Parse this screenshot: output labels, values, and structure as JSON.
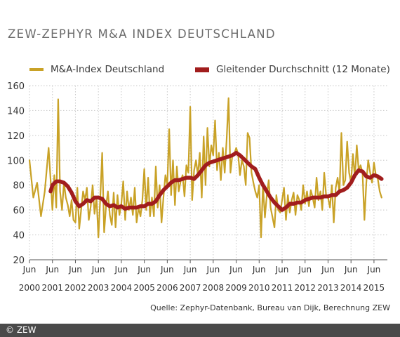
{
  "title": "ZEW-ZEPHYR M&A INDEX DEUTSCHLAND",
  "source": "Quelle: Zephyr-Datenbank, Bureau van Dijk, Berechnung ZEW",
  "footer": "© ZEW",
  "colors": {
    "index": "#c9a227",
    "average": "#a11d1d",
    "grid": "#c8c8c8",
    "axis": "#555555",
    "footer": "#4a4a4a"
  },
  "chart_data": {
    "type": "line",
    "ylim": [
      20,
      160
    ],
    "yticks": [
      20,
      40,
      60,
      80,
      100,
      120,
      140,
      160
    ],
    "xlim": [
      2000,
      2015.583
    ],
    "xticks": [
      {
        "month": "Jun",
        "year": "2000",
        "x": 2000.0
      },
      {
        "month": "Jun",
        "year": "2001",
        "x": 2001.0
      },
      {
        "month": "Jun",
        "year": "2002",
        "x": 2002.0
      },
      {
        "month": "Jun",
        "year": "2003",
        "x": 2003.0
      },
      {
        "month": "Jun",
        "year": "2004",
        "x": 2004.0
      },
      {
        "month": "Jun",
        "year": "2005",
        "x": 2005.0
      },
      {
        "month": "Jun",
        "year": "2006",
        "x": 2006.0
      },
      {
        "month": "Jun",
        "year": "2007",
        "x": 2007.0
      },
      {
        "month": "Jun",
        "year": "2008",
        "x": 2008.0
      },
      {
        "month": "Jun",
        "year": "2009",
        "x": 2009.0
      },
      {
        "month": "Jun",
        "year": "2010",
        "x": 2010.0
      },
      {
        "month": "Jun",
        "year": "2011",
        "x": 2011.0
      },
      {
        "month": "Jun",
        "year": "2012",
        "x": 2012.0
      },
      {
        "month": "Jun",
        "year": "2013",
        "x": 2013.0
      },
      {
        "month": "Jun",
        "year": "2014",
        "x": 2014.0
      },
      {
        "month": "Jun",
        "year": "2015",
        "x": 2015.0
      }
    ],
    "grid": true,
    "legend": "top",
    "series": [
      {
        "name": "M&A-Index Deutschland",
        "type": "line",
        "points": [
          [
            2000.0,
            100
          ],
          [
            2000.167,
            70
          ],
          [
            2000.333,
            82
          ],
          [
            2000.5,
            55
          ],
          [
            2000.667,
            75
          ],
          [
            2000.833,
            110
          ],
          [
            2001.0,
            60
          ],
          [
            2001.083,
            88
          ],
          [
            2001.167,
            62
          ],
          [
            2001.25,
            149
          ],
          [
            2001.333,
            75
          ],
          [
            2001.417,
            60
          ],
          [
            2001.5,
            82
          ],
          [
            2001.583,
            70
          ],
          [
            2001.667,
            64
          ],
          [
            2001.75,
            55
          ],
          [
            2001.833,
            68
          ],
          [
            2001.917,
            52
          ],
          [
            2002.0,
            50
          ],
          [
            2002.083,
            78
          ],
          [
            2002.167,
            45
          ],
          [
            2002.25,
            60
          ],
          [
            2002.333,
            75
          ],
          [
            2002.417,
            68
          ],
          [
            2002.5,
            78
          ],
          [
            2002.583,
            52
          ],
          [
            2002.667,
            63
          ],
          [
            2002.75,
            80
          ],
          [
            2002.833,
            57
          ],
          [
            2002.917,
            70
          ],
          [
            2003.0,
            38
          ],
          [
            2003.083,
            70
          ],
          [
            2003.167,
            106
          ],
          [
            2003.25,
            42
          ],
          [
            2003.333,
            63
          ],
          [
            2003.417,
            75
          ],
          [
            2003.5,
            56
          ],
          [
            2003.583,
            48
          ],
          [
            2003.667,
            74
          ],
          [
            2003.75,
            46
          ],
          [
            2003.833,
            72
          ],
          [
            2003.917,
            56
          ],
          [
            2004.0,
            65
          ],
          [
            2004.083,
            83
          ],
          [
            2004.167,
            52
          ],
          [
            2004.25,
            75
          ],
          [
            2004.333,
            60
          ],
          [
            2004.417,
            70
          ],
          [
            2004.5,
            56
          ],
          [
            2004.583,
            78
          ],
          [
            2004.667,
            50
          ],
          [
            2004.75,
            62
          ],
          [
            2004.833,
            55
          ],
          [
            2004.917,
            68
          ],
          [
            2005.0,
            93
          ],
          [
            2005.083,
            60
          ],
          [
            2005.167,
            86
          ],
          [
            2005.25,
            55
          ],
          [
            2005.333,
            70
          ],
          [
            2005.417,
            55
          ],
          [
            2005.5,
            95
          ],
          [
            2005.583,
            62
          ],
          [
            2005.667,
            80
          ],
          [
            2005.75,
            50
          ],
          [
            2005.833,
            70
          ],
          [
            2005.917,
            88
          ],
          [
            2006.0,
            80
          ],
          [
            2006.083,
            125
          ],
          [
            2006.167,
            72
          ],
          [
            2006.25,
            100
          ],
          [
            2006.333,
            64
          ],
          [
            2006.417,
            95
          ],
          [
            2006.5,
            75
          ],
          [
            2006.583,
            83
          ],
          [
            2006.667,
            88
          ],
          [
            2006.75,
            71
          ],
          [
            2006.833,
            96
          ],
          [
            2006.917,
            90
          ],
          [
            2007.0,
            143
          ],
          [
            2007.083,
            68
          ],
          [
            2007.167,
            92
          ],
          [
            2007.25,
            100
          ],
          [
            2007.333,
            88
          ],
          [
            2007.417,
            106
          ],
          [
            2007.5,
            70
          ],
          [
            2007.583,
            119
          ],
          [
            2007.667,
            80
          ],
          [
            2007.75,
            126
          ],
          [
            2007.833,
            95
          ],
          [
            2007.917,
            112
          ],
          [
            2008.0,
            104
          ],
          [
            2008.083,
            132
          ],
          [
            2008.167,
            92
          ],
          [
            2008.25,
            106
          ],
          [
            2008.333,
            84
          ],
          [
            2008.417,
            110
          ],
          [
            2008.5,
            90
          ],
          [
            2008.583,
            116
          ],
          [
            2008.667,
            150
          ],
          [
            2008.75,
            90
          ],
          [
            2008.833,
            104
          ],
          [
            2008.917,
            105
          ],
          [
            2009.0,
            110
          ],
          [
            2009.083,
            105
          ],
          [
            2009.167,
            88
          ],
          [
            2009.25,
            100
          ],
          [
            2009.333,
            95
          ],
          [
            2009.417,
            80
          ],
          [
            2009.5,
            122
          ],
          [
            2009.583,
            118
          ],
          [
            2009.667,
            90
          ],
          [
            2009.75,
            82
          ],
          [
            2009.833,
            75
          ],
          [
            2009.917,
            70
          ],
          [
            2010.0,
            80
          ],
          [
            2010.083,
            38
          ],
          [
            2010.167,
            80
          ],
          [
            2010.25,
            54
          ],
          [
            2010.333,
            72
          ],
          [
            2010.417,
            84
          ],
          [
            2010.5,
            62
          ],
          [
            2010.583,
            54
          ],
          [
            2010.667,
            46
          ],
          [
            2010.75,
            72
          ],
          [
            2010.833,
            60
          ],
          [
            2010.917,
            58
          ],
          [
            2011.0,
            68
          ],
          [
            2011.083,
            78
          ],
          [
            2011.167,
            52
          ],
          [
            2011.25,
            72
          ],
          [
            2011.333,
            58
          ],
          [
            2011.417,
            68
          ],
          [
            2011.5,
            74
          ],
          [
            2011.583,
            56
          ],
          [
            2011.667,
            72
          ],
          [
            2011.75,
            68
          ],
          [
            2011.833,
            60
          ],
          [
            2011.917,
            80
          ],
          [
            2012.0,
            65
          ],
          [
            2012.083,
            75
          ],
          [
            2012.167,
            63
          ],
          [
            2012.25,
            76
          ],
          [
            2012.333,
            70
          ],
          [
            2012.417,
            62
          ],
          [
            2012.5,
            86
          ],
          [
            2012.583,
            68
          ],
          [
            2012.667,
            75
          ],
          [
            2012.75,
            60
          ],
          [
            2012.833,
            90
          ],
          [
            2012.917,
            72
          ],
          [
            2013.0,
            70
          ],
          [
            2013.083,
            62
          ],
          [
            2013.167,
            80
          ],
          [
            2013.25,
            50
          ],
          [
            2013.333,
            78
          ],
          [
            2013.417,
            86
          ],
          [
            2013.5,
            74
          ],
          [
            2013.583,
            122
          ],
          [
            2013.667,
            80
          ],
          [
            2013.75,
            84
          ],
          [
            2013.833,
            115
          ],
          [
            2013.917,
            90
          ],
          [
            2014.0,
            82
          ],
          [
            2014.083,
            105
          ],
          [
            2014.167,
            86
          ],
          [
            2014.25,
            112
          ],
          [
            2014.333,
            92
          ],
          [
            2014.417,
            96
          ],
          [
            2014.5,
            90
          ],
          [
            2014.583,
            52
          ],
          [
            2014.667,
            82
          ],
          [
            2014.75,
            100
          ],
          [
            2014.833,
            90
          ],
          [
            2014.917,
            82
          ],
          [
            2015.0,
            98
          ],
          [
            2015.083,
            88
          ],
          [
            2015.167,
            85
          ],
          [
            2015.25,
            75
          ],
          [
            2015.333,
            70
          ]
        ]
      },
      {
        "name": "Gleitender Durchschnitt (12 Monate)",
        "type": "line",
        "points": [
          [
            2000.917,
            75
          ],
          [
            2001.0,
            80
          ],
          [
            2001.167,
            83
          ],
          [
            2001.333,
            83
          ],
          [
            2001.5,
            82
          ],
          [
            2001.667,
            79
          ],
          [
            2001.833,
            74
          ],
          [
            2002.0,
            67
          ],
          [
            2002.167,
            63
          ],
          [
            2002.333,
            65
          ],
          [
            2002.5,
            68
          ],
          [
            2002.667,
            67
          ],
          [
            2002.833,
            70
          ],
          [
            2003.0,
            70
          ],
          [
            2003.167,
            69
          ],
          [
            2003.333,
            65
          ],
          [
            2003.5,
            63
          ],
          [
            2003.667,
            64
          ],
          [
            2003.833,
            62
          ],
          [
            2004.0,
            63
          ],
          [
            2004.167,
            61
          ],
          [
            2004.333,
            62
          ],
          [
            2004.5,
            62
          ],
          [
            2004.667,
            62
          ],
          [
            2004.833,
            63
          ],
          [
            2005.0,
            63
          ],
          [
            2005.167,
            65
          ],
          [
            2005.333,
            65
          ],
          [
            2005.5,
            67
          ],
          [
            2005.667,
            72
          ],
          [
            2005.833,
            76
          ],
          [
            2006.0,
            79
          ],
          [
            2006.167,
            82
          ],
          [
            2006.333,
            84
          ],
          [
            2006.5,
            84
          ],
          [
            2006.667,
            85
          ],
          [
            2006.833,
            86
          ],
          [
            2007.0,
            86
          ],
          [
            2007.167,
            85
          ],
          [
            2007.333,
            88
          ],
          [
            2007.5,
            92
          ],
          [
            2007.667,
            96
          ],
          [
            2007.833,
            98
          ],
          [
            2008.0,
            99
          ],
          [
            2008.167,
            100
          ],
          [
            2008.333,
            101
          ],
          [
            2008.5,
            102
          ],
          [
            2008.667,
            103
          ],
          [
            2008.833,
            104
          ],
          [
            2009.0,
            106
          ],
          [
            2009.167,
            104
          ],
          [
            2009.333,
            101
          ],
          [
            2009.5,
            98
          ],
          [
            2009.667,
            95
          ],
          [
            2009.833,
            93
          ],
          [
            2010.0,
            86
          ],
          [
            2010.167,
            80
          ],
          [
            2010.333,
            75
          ],
          [
            2010.5,
            70
          ],
          [
            2010.667,
            66
          ],
          [
            2010.833,
            63
          ],
          [
            2011.0,
            60
          ],
          [
            2011.167,
            62
          ],
          [
            2011.333,
            65
          ],
          [
            2011.5,
            65
          ],
          [
            2011.667,
            66
          ],
          [
            2011.833,
            66
          ],
          [
            2012.0,
            68
          ],
          [
            2012.167,
            69
          ],
          [
            2012.333,
            70
          ],
          [
            2012.5,
            70
          ],
          [
            2012.667,
            70
          ],
          [
            2012.833,
            71
          ],
          [
            2013.0,
            71
          ],
          [
            2013.167,
            72
          ],
          [
            2013.333,
            72
          ],
          [
            2013.5,
            75
          ],
          [
            2013.667,
            76
          ],
          [
            2013.833,
            78
          ],
          [
            2014.0,
            82
          ],
          [
            2014.083,
            85
          ],
          [
            2014.167,
            88
          ],
          [
            2014.25,
            90
          ],
          [
            2014.333,
            92
          ],
          [
            2014.5,
            91
          ],
          [
            2014.667,
            87
          ],
          [
            2014.833,
            86
          ],
          [
            2015.0,
            88
          ],
          [
            2015.167,
            87
          ],
          [
            2015.333,
            85
          ]
        ]
      }
    ]
  }
}
